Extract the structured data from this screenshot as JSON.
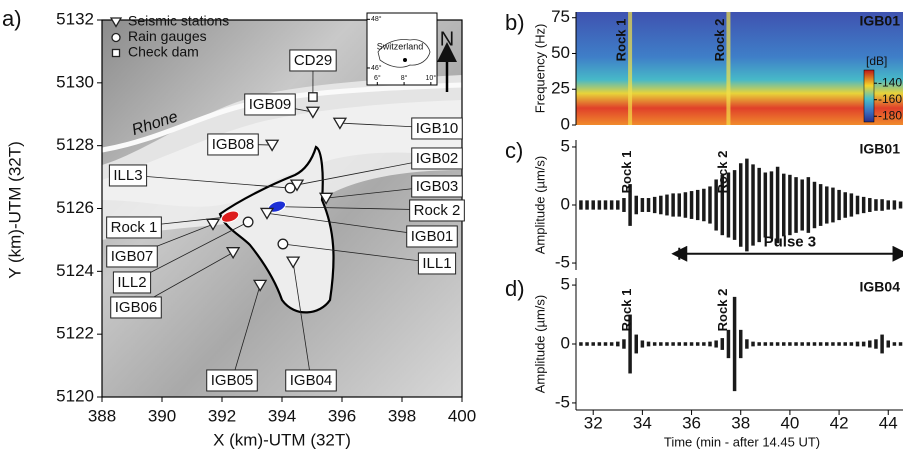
{
  "chart_data": [
    {
      "type": "map",
      "panel": "a)",
      "xlabel": "X (km)-UTM (32T)",
      "ylabel": "Y (km)-UTM (32T)",
      "xlim": [
        388,
        400
      ],
      "ylim": [
        5120,
        5132
      ],
      "xticks": [
        388,
        390,
        392,
        394,
        396,
        398,
        400
      ],
      "yticks": [
        5120,
        5122,
        5124,
        5126,
        5128,
        5130,
        5132
      ],
      "series": [
        {
          "name": "Seismic stations",
          "marker": "triangle",
          "color": "#222222",
          "labels": [
            "IGB01",
            "IGB02",
            "IGB03",
            "IGB04",
            "IGB05",
            "IGB06",
            "IGB07",
            "IGB08",
            "IGB09",
            "IGB10"
          ],
          "x": [
            393.5,
            394.5,
            395.47,
            394.37,
            393.27,
            392.37,
            391.7,
            393.67,
            395.03,
            395.93
          ],
          "y": [
            5125.85,
            5126.75,
            5126.33,
            5124.3,
            5123.56,
            5124.6,
            5125.5,
            5128.02,
            5129.07,
            5128.72
          ]
        },
        {
          "name": "Rain gauges",
          "marker": "circle",
          "color": "#222222",
          "labels": [
            "ILL1",
            "ILL2",
            "ILL3"
          ],
          "x": [
            394.03,
            392.87,
            394.27
          ],
          "y": [
            5124.87,
            5125.57,
            5126.65
          ]
        },
        {
          "name": "Check dam",
          "marker": "square",
          "color": "#222222",
          "labels": [
            "CD29"
          ],
          "x": [
            395.03
          ],
          "y": [
            5129.55
          ]
        }
      ],
      "rocks": [
        {
          "label": "Rock 1",
          "color": "#dd1c1c",
          "x": 392.27,
          "y": 5125.74
        },
        {
          "label": "Rock 2",
          "color": "#1c2fd6",
          "x": 393.83,
          "y": 5126.06
        }
      ],
      "river": "Rhone",
      "north": "N",
      "inset": {
        "label": "Switzerland",
        "xlim": [
          5.23,
          10.46
        ],
        "ylim": [
          45.3,
          48.26
        ],
        "xticks": [
          {
            "value": 6,
            "label": "6°"
          },
          {
            "value": 8,
            "label": "8°"
          },
          {
            "value": 10,
            "label": "10°"
          }
        ],
        "yticks": [
          {
            "value": 46,
            "label": "46°"
          },
          {
            "value": 48,
            "label": "48°"
          }
        ]
      }
    },
    {
      "type": "spectrogram",
      "panel": "b)",
      "station": "IGB01",
      "ylabel": "Frequency (Hz)",
      "xlim": [
        31.3,
        44.6
      ],
      "ylim": [
        0,
        79
      ],
      "yticks": [
        0,
        25,
        50,
        75
      ],
      "colorbar": {
        "label": "[dB]",
        "clim": [
          -187,
          -124
        ],
        "ticks": [
          -140,
          -160,
          -180
        ]
      },
      "annotations": [
        {
          "text": "Rock 1",
          "x": 33.5,
          "color": "#ffffff"
        },
        {
          "text": "Rock 2",
          "x": 37.5,
          "color": "#ffffff"
        }
      ]
    },
    {
      "type": "waveform",
      "panel": "c)",
      "station": "IGB01",
      "ylabel": "Amplitude (µm/s)",
      "color": "#1a1a1a",
      "xlim": [
        31.3,
        44.6
      ],
      "ylim": [
        -5.6,
        5.6
      ],
      "yticks": [
        -5,
        0,
        5
      ],
      "x": [
        31.5,
        31.75,
        32,
        32.25,
        32.5,
        32.75,
        33,
        33.25,
        33.5,
        33.75,
        34,
        34.25,
        34.5,
        34.75,
        35,
        35.25,
        35.5,
        35.75,
        36,
        36.25,
        36.5,
        36.75,
        37,
        37.25,
        37.5,
        37.75,
        38,
        38.25,
        38.5,
        38.75,
        39,
        39.25,
        39.5,
        39.75,
        40,
        40.25,
        40.5,
        40.75,
        41,
        41.25,
        41.5,
        41.75,
        42,
        42.25,
        42.5,
        42.75,
        43,
        43.25,
        43.5,
        43.75,
        44,
        44.25,
        44.5
      ],
      "values": [
        0.4,
        0.4,
        0.4,
        0.4,
        0.4,
        0.4,
        0.4,
        0.6,
        1.8,
        0.8,
        0.6,
        0.6,
        0.7,
        0.8,
        0.9,
        1.0,
        1.0,
        1.1,
        1.2,
        1.3,
        1.4,
        1.6,
        2.2,
        2.6,
        2.8,
        3.0,
        3.6,
        4.0,
        3.5,
        3.2,
        2.8,
        2.9,
        3.3,
        2.7,
        2.6,
        2.4,
        2.2,
        2.4,
        2.0,
        1.8,
        1.6,
        1.5,
        1.3,
        1.1,
        1.0,
        0.8,
        0.7,
        0.6,
        0.5,
        0.5,
        0.4,
        0.4,
        0.3
      ],
      "annotations": [
        {
          "text": "Rock 1",
          "x": 33.4,
          "color": "#d62020"
        },
        {
          "text": "Rock 2",
          "x": 37.3,
          "color": "#1c2fd6"
        }
      ],
      "span": {
        "label": "Pulse 3",
        "x": [
          35.5,
          44.5
        ],
        "y": -4.2
      }
    },
    {
      "type": "waveform",
      "panel": "d)",
      "station": "IGB04",
      "ylabel": "Amplitude (µm/s)",
      "color": "#1a1a1a",
      "xlabel": "Time (min - after 14.45 UT)",
      "xlim": [
        31.3,
        44.6
      ],
      "ylim": [
        -5.6,
        5.6
      ],
      "yticks": [
        -5,
        0,
        5
      ],
      "xticks": [
        32,
        34,
        36,
        38,
        40,
        42,
        44
      ],
      "x": [
        31.5,
        31.75,
        32,
        32.25,
        32.5,
        32.75,
        33,
        33.25,
        33.5,
        33.75,
        34,
        34.25,
        34.5,
        34.75,
        35,
        35.25,
        35.5,
        35.75,
        36,
        36.25,
        36.5,
        36.75,
        37,
        37.25,
        37.5,
        37.75,
        38,
        38.25,
        38.5,
        38.75,
        39,
        39.25,
        39.5,
        39.75,
        40,
        40.25,
        40.5,
        40.75,
        41,
        41.25,
        41.5,
        41.75,
        42,
        42.25,
        42.5,
        42.75,
        43,
        43.25,
        43.5,
        43.75,
        44,
        44.25,
        44.5
      ],
      "values": [
        0.15,
        0.15,
        0.15,
        0.15,
        0.15,
        0.15,
        0.2,
        0.4,
        2.5,
        0.8,
        0.3,
        0.2,
        0.15,
        0.15,
        0.15,
        0.15,
        0.15,
        0.15,
        0.15,
        0.15,
        0.15,
        0.2,
        0.3,
        0.5,
        1.2,
        4.0,
        1.2,
        0.4,
        0.2,
        0.15,
        0.15,
        0.15,
        0.15,
        0.15,
        0.15,
        0.15,
        0.15,
        0.15,
        0.15,
        0.15,
        0.15,
        0.15,
        0.15,
        0.15,
        0.15,
        0.2,
        0.2,
        0.3,
        0.4,
        0.8,
        0.3,
        0.15,
        0.15
      ],
      "annotations": [
        {
          "text": "Rock 1",
          "x": 33.4,
          "color": "#d62020"
        },
        {
          "text": "Rock 2",
          "x": 37.3,
          "color": "#1c2fd6"
        }
      ]
    }
  ]
}
